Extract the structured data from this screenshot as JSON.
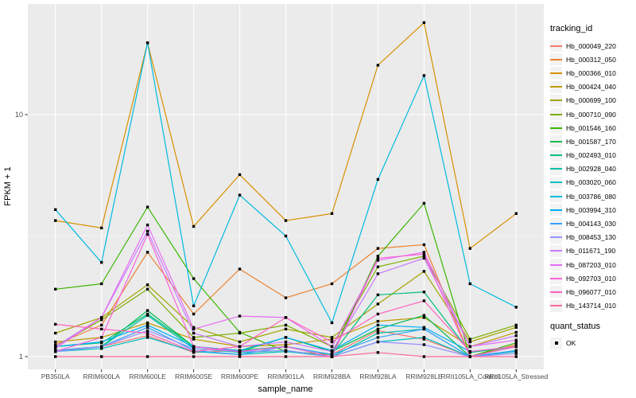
{
  "figure": {
    "colors": {
      "panel_bg": "#ebebeb",
      "grid": "#ffffff",
      "tick_text": "#4d4d4d",
      "axis_title": "#000000",
      "marker": "#000000",
      "legend_key_bg": "#f2f2f2"
    }
  },
  "chart_data": {
    "type": "line",
    "title": "",
    "xlabel": "sample_name",
    "ylabel": "FPKM + 1",
    "y_scale": "log10",
    "ylim": [
      1,
      28
    ],
    "y_ticks": [
      10,
      1
    ],
    "y_tick_labels": [
      "10",
      "1"
    ],
    "y_minor_ticks": [
      3.162
    ],
    "grid": true,
    "marker_shape": "black-square",
    "legend": {
      "title": "tracking_id",
      "position": "right",
      "quant_status_title": "quant_status",
      "quant_status_items": [
        "OK"
      ]
    },
    "categories": [
      "PB350LA",
      "RRIM600LA",
      "RRIM600LE",
      "RRIM600SE",
      "RRIM600PE",
      "RRIM901LA",
      "RRIM928BA",
      "RRIM928LA",
      "RRIM928LE",
      "RRII105LA_Control",
      "RRII105LA_Stressed"
    ],
    "series": [
      {
        "name": "Hb_000049_220",
        "color": "#F8766D",
        "values": [
          1.06,
          1.1,
          1.22,
          1.04,
          1.06,
          1.1,
          1.02,
          1.28,
          1.18,
          1.0,
          1.05
        ]
      },
      {
        "name": "Hb_000312_050",
        "color": "#EA8331",
        "values": [
          1.12,
          1.35,
          2.7,
          1.5,
          2.3,
          1.75,
          2.0,
          2.8,
          2.9,
          1.0,
          1.12
        ]
      },
      {
        "name": "Hb_000366_010",
        "color": "#D89000",
        "values": [
          3.65,
          3.4,
          19.8,
          3.45,
          5.65,
          3.65,
          3.9,
          16.0,
          24.0,
          2.8,
          3.9
        ]
      },
      {
        "name": "Hb_000424_040",
        "color": "#C09B00",
        "values": [
          1.15,
          1.2,
          1.38,
          1.18,
          1.1,
          1.12,
          1.18,
          1.4,
          1.45,
          1.1,
          1.26
        ]
      },
      {
        "name": "Hb_000699_100",
        "color": "#A3A500",
        "values": [
          1.25,
          1.45,
          1.98,
          1.32,
          1.15,
          1.3,
          1.2,
          1.65,
          2.25,
          1.15,
          1.32
        ]
      },
      {
        "name": "Hb_000710_090",
        "color": "#7CAE00",
        "values": [
          1.1,
          1.42,
          1.9,
          1.2,
          1.25,
          1.35,
          1.1,
          2.35,
          2.6,
          1.18,
          1.35
        ]
      },
      {
        "name": "Hb_001546_160",
        "color": "#39B600",
        "values": [
          1.9,
          2.0,
          4.15,
          2.1,
          1.26,
          1.05,
          1.02,
          2.6,
          4.3,
          1.0,
          1.14
        ]
      },
      {
        "name": "Hb_001587_170",
        "color": "#00BB4E",
        "values": [
          1.06,
          1.1,
          1.55,
          1.1,
          1.05,
          1.2,
          1.05,
          1.3,
          1.48,
          1.0,
          1.1
        ]
      },
      {
        "name": "Hb_002493_010",
        "color": "#00BF7D",
        "values": [
          1.1,
          1.14,
          1.5,
          1.1,
          1.06,
          1.1,
          1.02,
          1.8,
          1.85,
          1.04,
          1.1
        ]
      },
      {
        "name": "Hb_002928_040",
        "color": "#00C1A3",
        "values": [
          1.05,
          1.1,
          1.48,
          1.08,
          1.04,
          1.06,
          1.0,
          1.25,
          1.3,
          1.0,
          1.06
        ]
      },
      {
        "name": "Hb_003020_060",
        "color": "#00BFC4",
        "values": [
          1.05,
          1.08,
          1.2,
          1.05,
          1.02,
          1.05,
          1.0,
          1.15,
          1.2,
          1.0,
          1.05
        ]
      },
      {
        "name": "Hb_003786_080",
        "color": "#00BAE0",
        "values": [
          4.05,
          2.45,
          19.8,
          1.62,
          4.65,
          3.15,
          1.38,
          5.4,
          14.5,
          2.0,
          1.6
        ]
      },
      {
        "name": "Hb_003994_310",
        "color": "#00B0F6",
        "values": [
          1.1,
          1.15,
          1.35,
          1.1,
          1.06,
          1.2,
          1.06,
          1.35,
          1.32,
          1.05,
          1.1
        ]
      },
      {
        "name": "Hb_004143_030",
        "color": "#35A2FF",
        "values": [
          1.06,
          1.1,
          1.32,
          1.06,
          1.02,
          1.1,
          1.02,
          1.2,
          1.3,
          1.0,
          1.06
        ]
      },
      {
        "name": "Hb_008453_130",
        "color": "#9590FF",
        "values": [
          1.05,
          1.1,
          1.28,
          1.08,
          1.05,
          1.06,
          1.0,
          1.15,
          1.12,
          1.0,
          1.03
        ]
      },
      {
        "name": "Hb_011671_190",
        "color": "#C77CFF",
        "values": [
          1.1,
          1.45,
          3.3,
          1.25,
          1.1,
          1.15,
          1.05,
          2.2,
          2.55,
          1.1,
          1.22
        ]
      },
      {
        "name": "Hb_087203_010",
        "color": "#E76BF3",
        "values": [
          1.08,
          1.45,
          3.5,
          1.3,
          1.47,
          1.45,
          1.1,
          2.5,
          2.7,
          1.1,
          1.17
        ]
      },
      {
        "name": "Hb_092703_010",
        "color": "#FA62DB",
        "values": [
          1.05,
          1.2,
          3.2,
          1.1,
          1.05,
          1.1,
          1.0,
          2.55,
          2.65,
          1.0,
          1.1
        ]
      },
      {
        "name": "Hb_096077_010",
        "color": "#FF62BC",
        "values": [
          1.36,
          1.3,
          1.25,
          1.05,
          1.1,
          1.45,
          1.15,
          1.5,
          1.7,
          1.05,
          1.1
        ]
      },
      {
        "name": "Hb_143714_010",
        "color": "#FF6A98",
        "values": [
          1.0,
          1.0,
          1.0,
          1.0,
          1.0,
          1.0,
          1.0,
          1.04,
          1.0,
          1.0,
          1.0
        ]
      }
    ]
  }
}
